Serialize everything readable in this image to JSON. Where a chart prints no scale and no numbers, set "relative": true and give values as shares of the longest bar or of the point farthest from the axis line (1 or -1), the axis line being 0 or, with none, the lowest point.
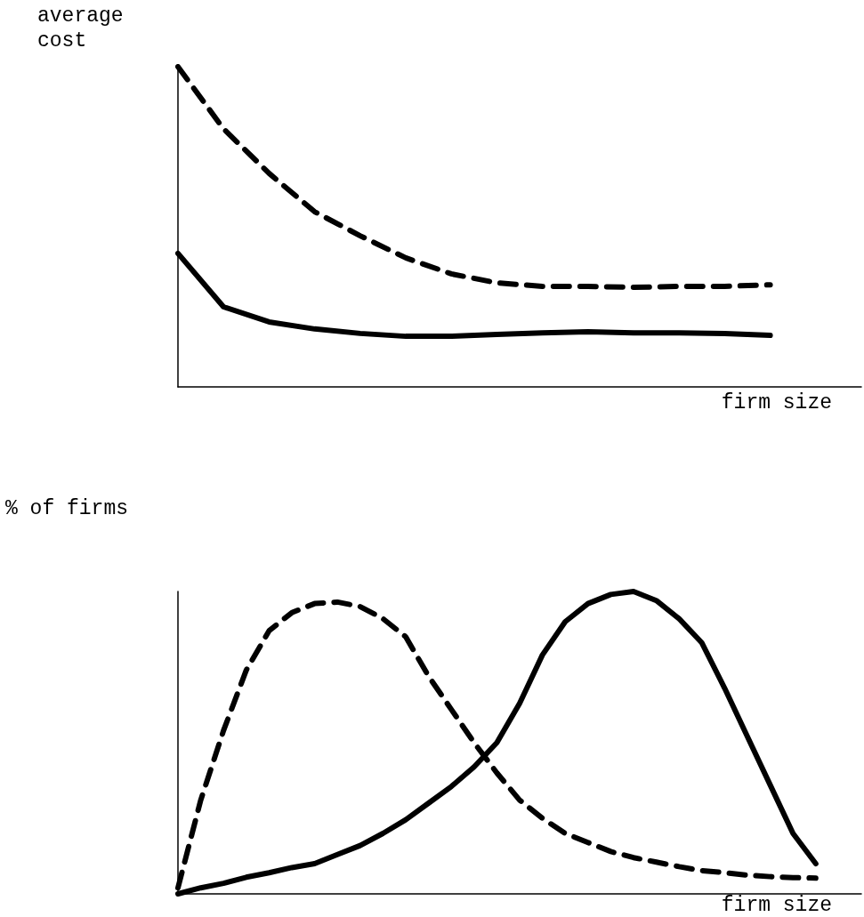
{
  "chart_data": [
    {
      "type": "line",
      "relative": true,
      "ylabel": "average\ncost",
      "xlabel": "firm size",
      "marker": "none",
      "categories": [
        null,
        null,
        null,
        null,
        null,
        null,
        null,
        null,
        null,
        null,
        null,
        null,
        null,
        null,
        null,
        null
      ],
      "series": [
        {
          "color": "#000000",
          "line_style": "dashed",
          "values": [
            1.0,
            0.806,
            0.667,
            0.547,
            0.472,
            0.403,
            0.353,
            0.325,
            0.314,
            0.314,
            0.311,
            0.314,
            0.314,
            0.319,
            null,
            null
          ]
        },
        {
          "color": "#000000",
          "line_style": "solid",
          "values": [
            0.417,
            0.25,
            0.203,
            0.181,
            0.167,
            0.158,
            0.158,
            0.164,
            0.169,
            0.172,
            0.169,
            0.169,
            0.167,
            0.161,
            null,
            null
          ]
        }
      ]
    },
    {
      "type": "line",
      "relative": true,
      "ylabel": "% of firms",
      "xlabel": "firm size",
      "marker": "none",
      "categories": [
        null,
        null,
        null,
        null,
        null,
        null,
        null,
        null,
        null,
        null,
        null,
        null,
        null,
        null,
        null,
        null,
        null,
        null,
        null,
        null,
        null,
        null,
        null,
        null,
        null,
        null,
        null,
        null,
        null,
        null,
        null
      ],
      "series": [
        {
          "color": "#000000",
          "line_style": "dashed",
          "values": [
            0.02,
            0.31,
            0.54,
            0.74,
            0.87,
            0.93,
            0.96,
            0.965,
            0.95,
            0.91,
            0.85,
            0.72,
            0.61,
            0.5,
            0.4,
            0.31,
            0.25,
            0.2,
            0.17,
            0.14,
            0.12,
            0.105,
            0.09,
            0.077,
            0.07,
            0.062,
            0.057,
            0.054,
            0.052,
            null,
            null
          ]
        },
        {
          "color": "#000000",
          "line_style": "solid",
          "values": [
            0,
            0.02,
            0.035,
            0.055,
            0.07,
            0.087,
            0.1,
            0.13,
            0.16,
            0.2,
            0.245,
            0.3,
            0.355,
            0.42,
            0.5,
            0.63,
            0.79,
            0.9,
            0.96,
            0.99,
            1.0,
            0.97,
            0.91,
            0.83,
            0.68,
            0.52,
            0.36,
            0.2,
            0.1,
            null,
            null
          ]
        }
      ]
    }
  ]
}
